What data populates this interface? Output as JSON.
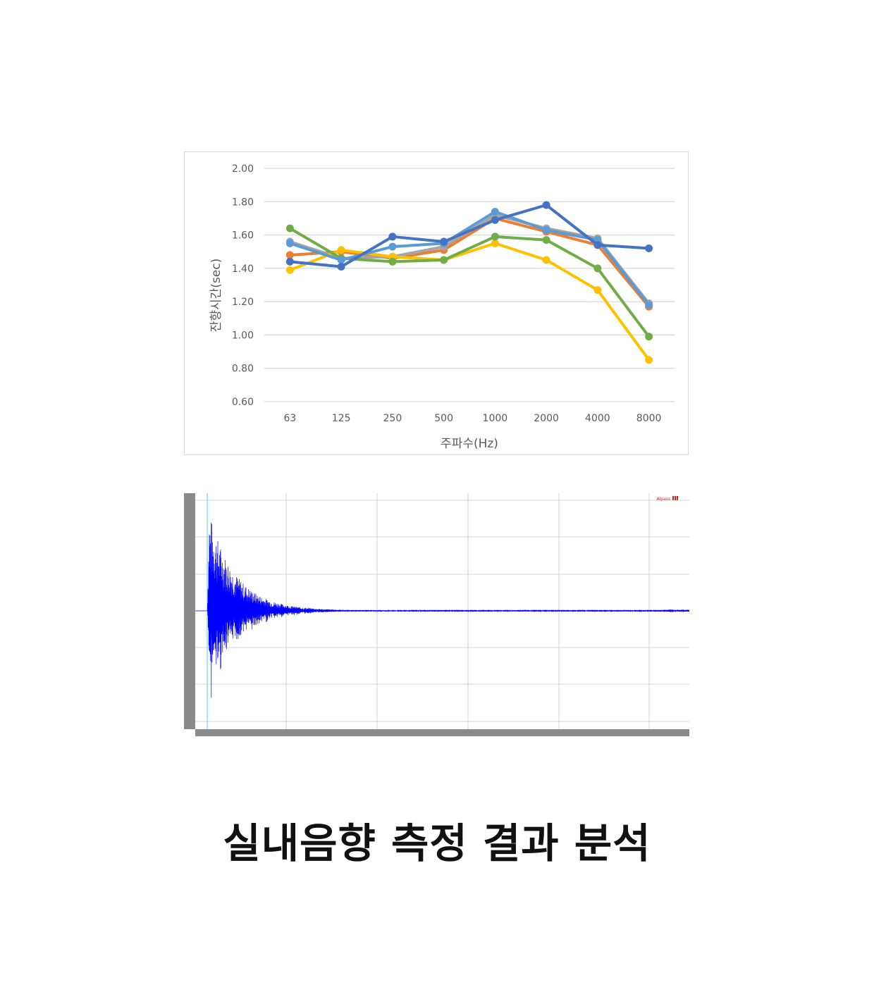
{
  "chart_data": [
    {
      "type": "line",
      "title": "",
      "xlabel": "주파수(Hz)",
      "ylabel": "잔향시간(sec)",
      "categories": [
        "63",
        "125",
        "250",
        "500",
        "1000",
        "2000",
        "4000",
        "8000"
      ],
      "ylim": [
        0.6,
        2.0
      ],
      "yticks": [
        "2.00",
        "1.80",
        "1.60",
        "1.40",
        "1.20",
        "1.00",
        "0.80",
        "0.60"
      ],
      "grid": true,
      "legend": "none",
      "series": [
        {
          "color": "#ED7D31",
          "values": [
            1.48,
            1.5,
            1.46,
            1.51,
            1.7,
            1.62,
            1.54,
            1.17
          ]
        },
        {
          "color": "#A5A5A5",
          "values": [
            1.56,
            1.46,
            1.47,
            1.53,
            1.72,
            1.64,
            1.58,
            1.19
          ]
        },
        {
          "color": "#FFC000",
          "values": [
            1.39,
            1.51,
            1.47,
            1.45,
            1.55,
            1.45,
            1.27,
            0.85
          ]
        },
        {
          "color": "#70AD47",
          "values": [
            1.64,
            1.46,
            1.44,
            1.45,
            1.59,
            1.57,
            1.4,
            0.99
          ]
        },
        {
          "color": "#5B9BD5",
          "values": [
            1.55,
            1.45,
            1.53,
            1.55,
            1.74,
            1.63,
            1.57,
            1.18
          ]
        },
        {
          "color": "#4472C4",
          "values": [
            1.44,
            1.41,
            1.59,
            1.56,
            1.69,
            1.78,
            1.54,
            1.52
          ]
        }
      ]
    },
    {
      "type": "line",
      "title": "",
      "description_kind": "impulse-response-waveform",
      "wave_color": "#0000FF",
      "grid": true,
      "brand_label": "Alpass",
      "brand_color": "#D42020"
    }
  ],
  "page_title": "실내음향 측정 결과 분석"
}
